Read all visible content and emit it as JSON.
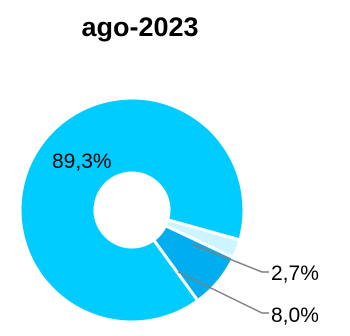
{
  "chart_data": {
    "type": "pie",
    "variant": "donut",
    "title": "ago-2023",
    "slices": [
      {
        "label": "89,3%",
        "value": 89.3,
        "color": "#00ccff"
      },
      {
        "label": "2,7%",
        "value": 2.7,
        "color": "#ccf5ff"
      },
      {
        "label": "8,0%",
        "value": 8.0,
        "color": "#00aeef"
      }
    ],
    "background_color": "#ffffff",
    "separator_color": "#ffffff",
    "leader_line_color": "#7f7f7f"
  }
}
